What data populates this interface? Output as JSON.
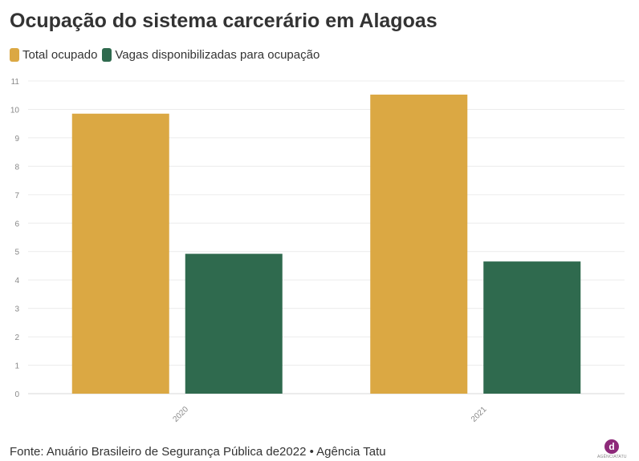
{
  "chart_data": {
    "type": "bar",
    "title": "Ocupação do sistema carcerário em Alagoas",
    "categories": [
      "2020",
      "2021"
    ],
    "series": [
      {
        "name": "Total ocupado",
        "color": "#dba843",
        "values": [
          9.85,
          10.52
        ]
      },
      {
        "name": "Vagas disponibilizadas para ocupação",
        "color": "#2f6a4e",
        "values": [
          4.92,
          4.65
        ]
      }
    ],
    "ylim": [
      0,
      11
    ],
    "yticks": [
      "0",
      "1",
      "2",
      "3",
      "4",
      "5",
      "6",
      "7",
      "8",
      "9",
      "10",
      "11"
    ],
    "grid": true,
    "legend_position": "top-left"
  },
  "footer": {
    "source": "Fonte: Anuário Brasileiro de Segurança Pública de2022 • Agência Tatu"
  },
  "logo": {
    "mark": "d",
    "text": "AGÊNCIATATU"
  }
}
